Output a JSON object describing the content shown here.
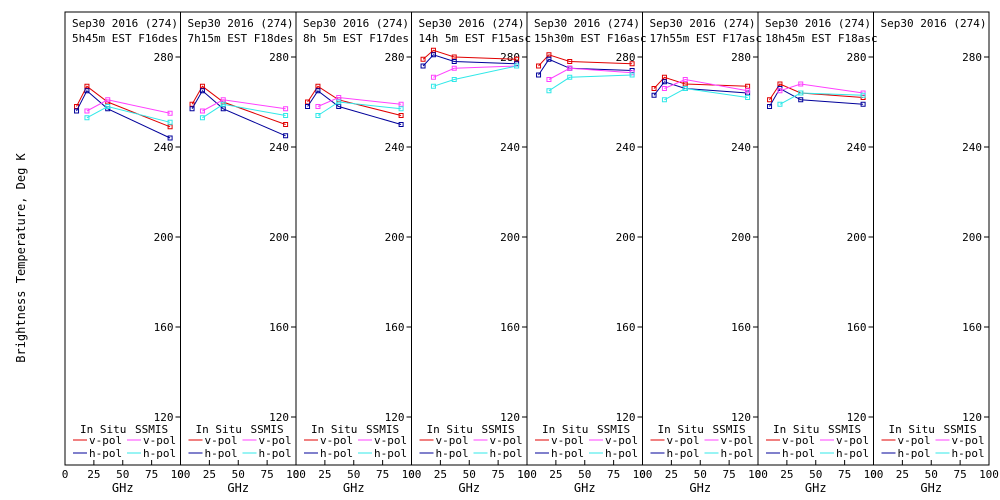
{
  "figure": {
    "ylabel": "Brightness Temperature, Deg K",
    "xlabel": "GHz",
    "yticks": [
      120,
      160,
      200,
      240,
      280
    ],
    "xticks": [
      0,
      25,
      50,
      75,
      100
    ],
    "ylim": [
      110,
      300
    ],
    "xlim": [
      0,
      100
    ],
    "legend": {
      "in_situ": "In Situ",
      "ssmis": "SSMIS",
      "vpol": "v-pol",
      "hpol": "h-pol"
    },
    "colors": {
      "insitu_v": "#e00000",
      "insitu_h": "#00009a",
      "ssmis_v": "#ff40ff",
      "ssmis_h": "#30e8e8"
    }
  },
  "chart_data": [
    {
      "type": "line",
      "title": "Sep30 2016 (274)",
      "subtitle": "5h45m EST F16des",
      "series": [
        {
          "name": "In Situ v-pol",
          "x": [
            10,
            19,
            37,
            91
          ],
          "y": [
            258,
            267,
            260,
            249
          ]
        },
        {
          "name": "In Situ h-pol",
          "x": [
            10,
            19,
            37,
            91
          ],
          "y": [
            256,
            265,
            257,
            244
          ]
        },
        {
          "name": "SSMIS v-pol",
          "x": [
            19,
            37,
            91
          ],
          "y": [
            256,
            261,
            255
          ]
        },
        {
          "name": "SSMIS h-pol",
          "x": [
            19,
            37,
            91
          ],
          "y": [
            253,
            258,
            251
          ]
        }
      ]
    },
    {
      "type": "line",
      "title": "Sep30 2016 (274)",
      "subtitle": "7h15m EST F18des",
      "series": [
        {
          "name": "In Situ v-pol",
          "x": [
            10,
            19,
            37,
            91
          ],
          "y": [
            259,
            267,
            260,
            250
          ]
        },
        {
          "name": "In Situ h-pol",
          "x": [
            10,
            19,
            37,
            91
          ],
          "y": [
            257,
            265,
            257,
            245
          ]
        },
        {
          "name": "SSMIS v-pol",
          "x": [
            19,
            37,
            91
          ],
          "y": [
            256,
            261,
            257
          ]
        },
        {
          "name": "SSMIS h-pol",
          "x": [
            19,
            37,
            91
          ],
          "y": [
            253,
            259,
            254
          ]
        }
      ]
    },
    {
      "type": "line",
      "title": "Sep30 2016 (274)",
      "subtitle": "8h 5m EST F17des",
      "series": [
        {
          "name": "In Situ v-pol",
          "x": [
            10,
            19,
            37,
            91
          ],
          "y": [
            260,
            267,
            261,
            254
          ]
        },
        {
          "name": "In Situ h-pol",
          "x": [
            10,
            19,
            37,
            91
          ],
          "y": [
            258,
            265,
            258,
            250
          ]
        },
        {
          "name": "SSMIS v-pol",
          "x": [
            19,
            37,
            91
          ],
          "y": [
            258,
            262,
            259
          ]
        },
        {
          "name": "SSMIS h-pol",
          "x": [
            19,
            37,
            91
          ],
          "y": [
            254,
            260,
            257
          ]
        }
      ]
    },
    {
      "type": "line",
      "title": "Sep30 2016 (274)",
      "subtitle": "14h 5m EST F15asc",
      "series": [
        {
          "name": "In Situ v-pol",
          "x": [
            10,
            19,
            37,
            91
          ],
          "y": [
            279,
            283,
            280,
            279
          ]
        },
        {
          "name": "In Situ h-pol",
          "x": [
            10,
            19,
            37,
            91
          ],
          "y": [
            276,
            281,
            278,
            277
          ]
        },
        {
          "name": "SSMIS v-pol",
          "x": [
            19,
            37,
            91
          ],
          "y": [
            271,
            275,
            276
          ]
        },
        {
          "name": "SSMIS h-pol",
          "x": [
            19,
            37,
            91
          ],
          "y": [
            267,
            270,
            276
          ]
        }
      ]
    },
    {
      "type": "line",
      "title": "Sep30 2016 (274)",
      "subtitle": "15h30m EST F16asc",
      "series": [
        {
          "name": "In Situ v-pol",
          "x": [
            10,
            19,
            37,
            91
          ],
          "y": [
            276,
            281,
            278,
            277
          ]
        },
        {
          "name": "In Situ h-pol",
          "x": [
            10,
            19,
            37,
            91
          ],
          "y": [
            272,
            279,
            275,
            274
          ]
        },
        {
          "name": "SSMIS v-pol",
          "x": [
            19,
            37,
            91
          ],
          "y": [
            270,
            275,
            273
          ]
        },
        {
          "name": "SSMIS h-pol",
          "x": [
            19,
            37,
            91
          ],
          "y": [
            265,
            271,
            272
          ]
        }
      ]
    },
    {
      "type": "line",
      "title": "Sep30 2016 (274)",
      "subtitle": "17h55m EST F17asc",
      "series": [
        {
          "name": "In Situ v-pol",
          "x": [
            10,
            19,
            37,
            91
          ],
          "y": [
            266,
            271,
            268,
            267
          ]
        },
        {
          "name": "In Situ h-pol",
          "x": [
            10,
            19,
            37,
            91
          ],
          "y": [
            263,
            269,
            266,
            264
          ]
        },
        {
          "name": "SSMIS v-pol",
          "x": [
            19,
            37,
            91
          ],
          "y": [
            266,
            270,
            265
          ]
        },
        {
          "name": "SSMIS h-pol",
          "x": [
            19,
            37,
            91
          ],
          "y": [
            261,
            266,
            262
          ]
        }
      ]
    },
    {
      "type": "line",
      "title": "Sep30 2016 (274)",
      "subtitle": "18h45m EST F18asc",
      "series": [
        {
          "name": "In Situ v-pol",
          "x": [
            10,
            19,
            37,
            91
          ],
          "y": [
            261,
            268,
            264,
            262
          ]
        },
        {
          "name": "In Situ h-pol",
          "x": [
            10,
            19,
            37,
            91
          ],
          "y": [
            258,
            266,
            261,
            259
          ]
        },
        {
          "name": "SSMIS v-pol",
          "x": [
            19,
            37,
            91
          ],
          "y": [
            265,
            268,
            264
          ]
        },
        {
          "name": "SSMIS h-pol",
          "x": [
            19,
            37,
            91
          ],
          "y": [
            259,
            264,
            263
          ]
        }
      ]
    },
    {
      "type": "line",
      "title": "Sep30 2016 (274)",
      "subtitle": "",
      "series": []
    }
  ]
}
